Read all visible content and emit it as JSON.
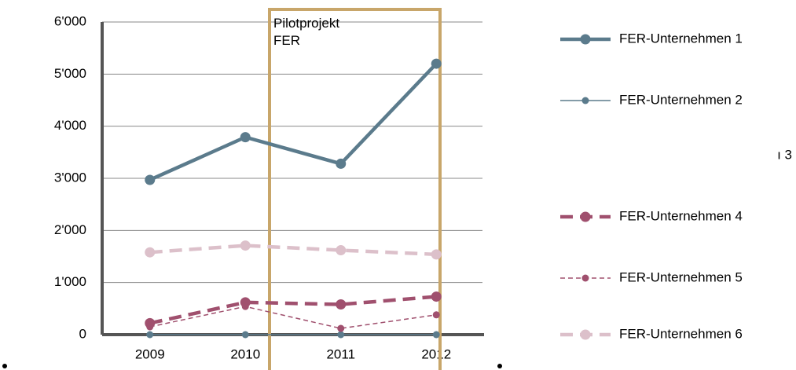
{
  "chart_data": {
    "type": "line",
    "categories": [
      "2009",
      "2010",
      "2011",
      "2012"
    ],
    "series": [
      {
        "name": "FER-Unternehmen 1",
        "color": "#5b7b8c",
        "line_style": "solid",
        "weight": "bold",
        "values": [
          2970,
          3790,
          3280,
          5200
        ]
      },
      {
        "name": "FER-Unternehmen 2",
        "color": "#5b7b8c",
        "line_style": "solid",
        "weight": "thin",
        "values": [
          0,
          0,
          0,
          0
        ]
      },
      {
        "name": "ı 3",
        "color": "#ffffff",
        "line_style": "solid",
        "weight": "thin",
        "values": [
          null,
          null,
          null,
          null
        ]
      },
      {
        "name": "FER-Unternehmen 4",
        "color": "#a0506e",
        "line_style": "dashed",
        "weight": "bold",
        "values": [
          220,
          620,
          580,
          730
        ]
      },
      {
        "name": "FER-Unternehmen 5",
        "color": "#a0506e",
        "line_style": "dashed",
        "weight": "thin",
        "values": [
          150,
          540,
          120,
          380
        ]
      },
      {
        "name": "FER-Unternehmen 6",
        "color": "#dcc0ca",
        "line_style": "dashed",
        "weight": "bold",
        "values": [
          1580,
          1710,
          1620,
          1540
        ]
      }
    ],
    "annotation": "Pilotprojekt\nFER",
    "ylim": [
      0,
      6000
    ],
    "yticks": [
      0,
      {
        "value": 1000,
        "label": "1'000"
      },
      {
        "value": 2000,
        "label": "2'000"
      },
      {
        "value": 3000,
        "label": "3'000"
      },
      {
        "value": 4000,
        "label": "4'000"
      },
      {
        "value": 5000,
        "label": "5'000"
      },
      {
        "value": 6000,
        "label": "6'000"
      }
    ],
    "grid": true,
    "legend": "right"
  }
}
